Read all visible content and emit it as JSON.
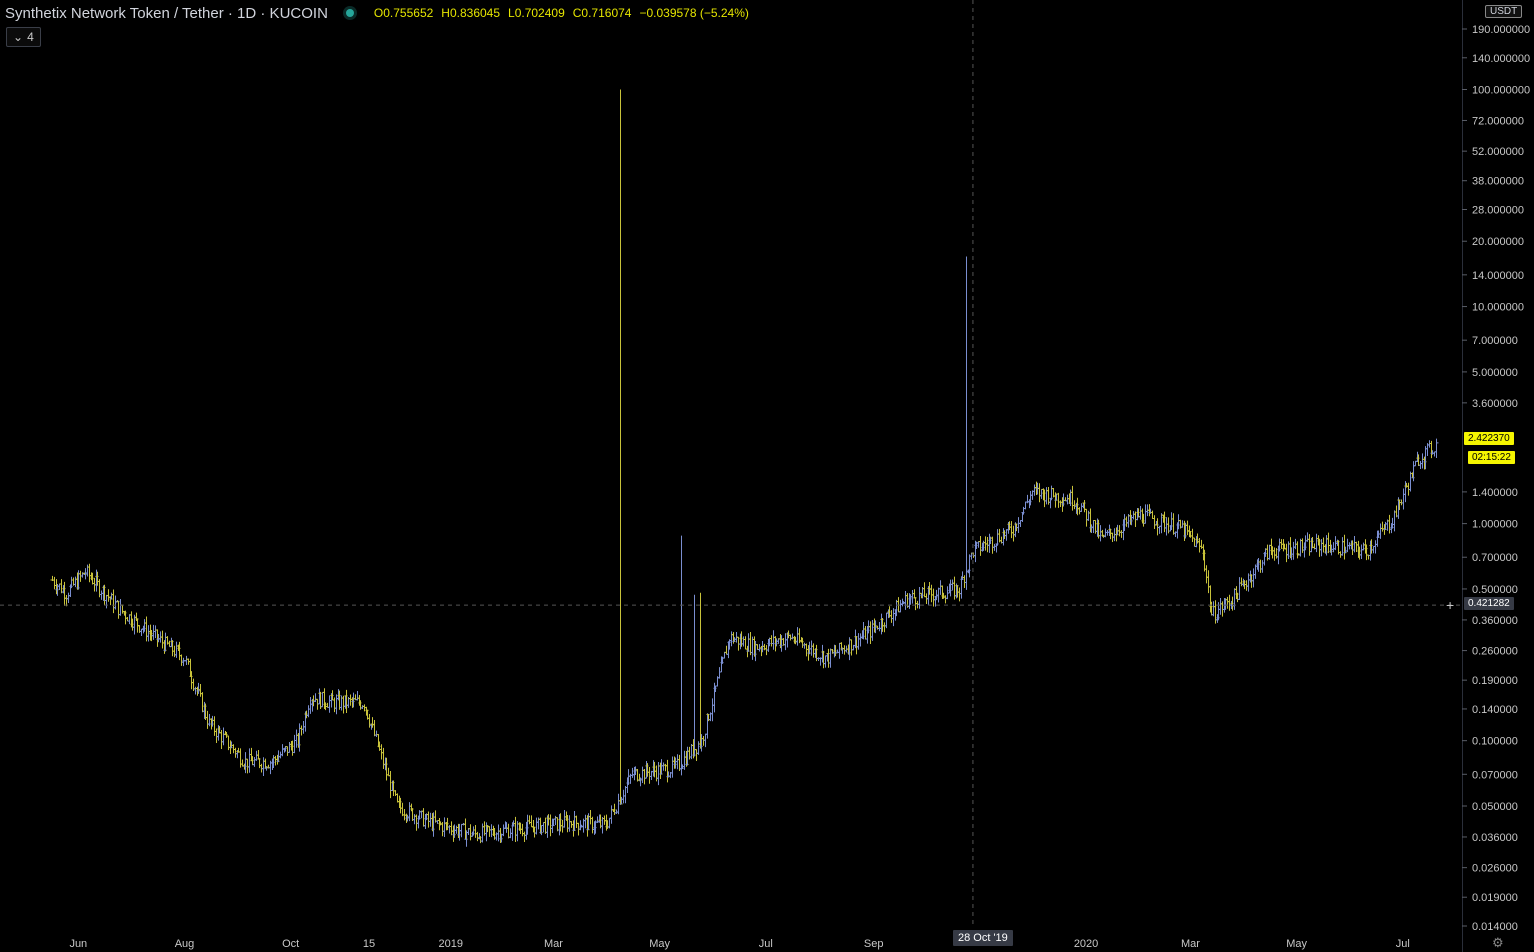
{
  "header": {
    "title": "Synthetix Network Token / Tether · 1D · KUCOIN",
    "open": "O0.755652",
    "high": "H0.836045",
    "low": "L0.702409",
    "close": "C0.716074",
    "change": "−0.039578 (−5.24%)"
  },
  "indicator_button": {
    "label": "4",
    "icon": "chevron-down-icon"
  },
  "currency": "USDT",
  "price_tags": {
    "last_price": "2.422370",
    "countdown": "02:15:22",
    "crosshair_price": "0.421282",
    "crosshair_date": "28 Oct '19"
  },
  "colors": {
    "background": "#000000",
    "bar_up": "#7a8ed0",
    "bar_down": "#c8c23a",
    "crosshair": "#4a4a4a",
    "last_price": "#f5f500",
    "header_values": "#e5e500"
  },
  "chart_data": {
    "type": "ohlc_bar",
    "title": "Synthetix Network Token / Tether · 1D · KUCOIN",
    "scale": "log",
    "ylim": [
      0.014,
      260
    ],
    "y_ticks": [
      {
        "label": "190.000000",
        "value": 190
      },
      {
        "label": "140.000000",
        "value": 140
      },
      {
        "label": "100.000000",
        "value": 100
      },
      {
        "label": "72.000000",
        "value": 72
      },
      {
        "label": "52.000000",
        "value": 52
      },
      {
        "label": "38.000000",
        "value": 38
      },
      {
        "label": "28.000000",
        "value": 28
      },
      {
        "label": "20.000000",
        "value": 20
      },
      {
        "label": "14.000000",
        "value": 14
      },
      {
        "label": "10.000000",
        "value": 10
      },
      {
        "label": "7.000000",
        "value": 7
      },
      {
        "label": "5.000000",
        "value": 5
      },
      {
        "label": "3.600000",
        "value": 3.6
      },
      {
        "label": "1.400000",
        "value": 1.4
      },
      {
        "label": "1.000000",
        "value": 1.0
      },
      {
        "label": "0.700000",
        "value": 0.7
      },
      {
        "label": "0.500000",
        "value": 0.5
      },
      {
        "label": "0.360000",
        "value": 0.36
      },
      {
        "label": "0.260000",
        "value": 0.26
      },
      {
        "label": "0.190000",
        "value": 0.19
      },
      {
        "label": "0.140000",
        "value": 0.14
      },
      {
        "label": "0.100000",
        "value": 0.1
      },
      {
        "label": "0.070000",
        "value": 0.07
      },
      {
        "label": "0.050000",
        "value": 0.05
      },
      {
        "label": "0.036000",
        "value": 0.036
      },
      {
        "label": "0.026000",
        "value": 0.026
      },
      {
        "label": "0.019000",
        "value": 0.019
      },
      {
        "label": "0.014000",
        "value": 0.014
      }
    ],
    "x_ticks": [
      {
        "label": "Jun",
        "date": "2018-06-01"
      },
      {
        "label": "Aug",
        "date": "2018-08-01"
      },
      {
        "label": "Oct",
        "date": "2018-10-01"
      },
      {
        "label": "15",
        "date": "2018-11-15"
      },
      {
        "label": "2019",
        "date": "2019-01-01"
      },
      {
        "label": "Mar",
        "date": "2019-03-01"
      },
      {
        "label": "May",
        "date": "2019-05-01"
      },
      {
        "label": "Jul",
        "date": "2019-07-01"
      },
      {
        "label": "Sep",
        "date": "2019-09-01"
      },
      {
        "label": "2020",
        "date": "2020-01-01"
      },
      {
        "label": "Mar",
        "date": "2020-03-01"
      },
      {
        "label": "May",
        "date": "2020-05-01"
      },
      {
        "label": "Jul",
        "date": "2020-07-01"
      }
    ],
    "x_range": [
      "2018-04-17",
      "2020-08-04"
    ],
    "price_path": [
      {
        "date": "2018-05-17",
        "close": 0.55
      },
      {
        "date": "2018-05-25",
        "close": 0.48
      },
      {
        "date": "2018-06-05",
        "close": 0.6
      },
      {
        "date": "2018-06-25",
        "close": 0.4
      },
      {
        "date": "2018-07-15",
        "close": 0.3
      },
      {
        "date": "2018-08-01",
        "close": 0.24
      },
      {
        "date": "2018-08-15",
        "close": 0.12
      },
      {
        "date": "2018-09-05",
        "close": 0.08
      },
      {
        "date": "2018-09-20",
        "close": 0.08
      },
      {
        "date": "2018-10-05",
        "close": 0.1
      },
      {
        "date": "2018-10-12",
        "close": 0.16
      },
      {
        "date": "2018-10-25",
        "close": 0.15
      },
      {
        "date": "2018-11-12",
        "close": 0.15
      },
      {
        "date": "2018-12-01",
        "close": 0.05
      },
      {
        "date": "2018-12-20",
        "close": 0.042
      },
      {
        "date": "2019-01-15",
        "close": 0.037
      },
      {
        "date": "2019-02-15",
        "close": 0.04
      },
      {
        "date": "2019-03-10",
        "close": 0.042
      },
      {
        "date": "2019-03-31",
        "close": 0.041
      },
      {
        "date": "2019-04-15",
        "close": 0.07
      },
      {
        "date": "2019-05-10",
        "close": 0.075
      },
      {
        "date": "2019-05-25",
        "close": 0.1
      },
      {
        "date": "2019-06-10",
        "close": 0.3
      },
      {
        "date": "2019-06-25",
        "close": 0.27
      },
      {
        "date": "2019-07-15",
        "close": 0.3
      },
      {
        "date": "2019-08-05",
        "close": 0.24
      },
      {
        "date": "2019-08-30",
        "close": 0.32
      },
      {
        "date": "2019-09-20",
        "close": 0.45
      },
      {
        "date": "2019-10-20",
        "close": 0.5
      },
      {
        "date": "2019-10-28",
        "close": 0.75
      },
      {
        "date": "2019-11-20",
        "close": 0.95
      },
      {
        "date": "2019-12-01",
        "close": 1.4
      },
      {
        "date": "2019-12-25",
        "close": 1.3
      },
      {
        "date": "2020-01-01",
        "close": 1.1
      },
      {
        "date": "2020-01-10",
        "close": 0.85
      },
      {
        "date": "2020-02-01",
        "close": 1.1
      },
      {
        "date": "2020-02-25",
        "close": 0.95
      },
      {
        "date": "2020-03-08",
        "close": 0.75
      },
      {
        "date": "2020-03-13",
        "close": 0.38
      },
      {
        "date": "2020-03-25",
        "close": 0.45
      },
      {
        "date": "2020-04-15",
        "close": 0.75
      },
      {
        "date": "2020-05-15",
        "close": 0.8
      },
      {
        "date": "2020-06-10",
        "close": 0.75
      },
      {
        "date": "2020-06-25",
        "close": 1.05
      },
      {
        "date": "2020-07-10",
        "close": 2.0
      },
      {
        "date": "2020-07-20",
        "close": 2.3
      }
    ],
    "wick_spikes": [
      {
        "date": "2019-04-08",
        "high": 100
      },
      {
        "date": "2019-05-13",
        "high": 0.88
      },
      {
        "date": "2019-05-21",
        "high": 0.47
      },
      {
        "date": "2019-05-24",
        "high": 0.48
      },
      {
        "date": "2019-10-24",
        "high": 17
      }
    ],
    "crosshair": {
      "date": "2019-10-28",
      "price": 0.421282
    },
    "last_price": 2.42237
  }
}
